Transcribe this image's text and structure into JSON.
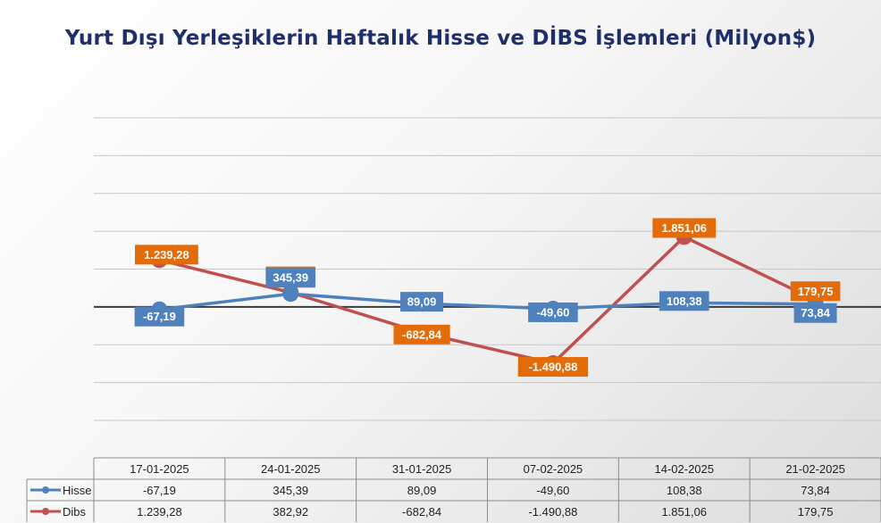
{
  "title": "Yurt Dışı Yerleşiklerin Haftalık Hisse ve DİBS İşlemleri (Milyon$)",
  "colors": {
    "hisse": "#4f81bd",
    "dibs": "#c0504d",
    "hisse_label_bg": "#4f81bd",
    "dibs_label_bg": "#e36c09"
  },
  "chart_data": {
    "type": "line",
    "title": "Yurt Dışı Yerleşiklerin Haftalık Hisse ve DİBS İşlemleri (Milyon$)",
    "categories": [
      "17-01-2025",
      "24-01-2025",
      "31-01-2025",
      "07-02-2025",
      "14-02-2025",
      "21-02-2025"
    ],
    "series": [
      {
        "name": "Hisse",
        "values": [
          -67.19,
          345.39,
          89.09,
          -49.6,
          108.38,
          73.84
        ],
        "labels": [
          "-67,19",
          "345,39",
          "89,09",
          "-49,60",
          "108,38",
          "73,84"
        ]
      },
      {
        "name": "Dibs",
        "values": [
          1239.28,
          382.92,
          -682.84,
          -1490.88,
          1851.06,
          179.75
        ],
        "labels": [
          "1.239,28",
          "382,92",
          "-682,84",
          "-1.490,88",
          "1.851,06",
          "179,75"
        ]
      }
    ],
    "ylim": [
      -3000,
      5000
    ],
    "grid": true,
    "legend": "data-table",
    "data_table": true
  }
}
